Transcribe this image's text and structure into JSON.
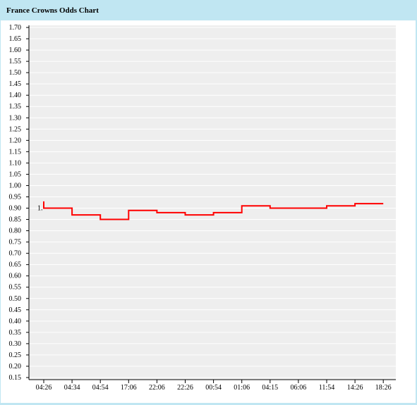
{
  "window": {
    "title": "France Crowns Odds Chart"
  },
  "chart_data": {
    "type": "line",
    "title": "France Crowns Odds Chart",
    "xlabel": "",
    "ylabel": "",
    "ylim": [
      0.15,
      1.7
    ],
    "y_ticks": [
      "1.70",
      "1.65",
      "1.60",
      "1.55",
      "1.50",
      "1.45",
      "1.40",
      "1.35",
      "1.30",
      "1.25",
      "1.20",
      "1.15",
      "1.10",
      "1.05",
      "1.00",
      "0.95",
      "0.90",
      "0.85",
      "0.80",
      "0.75",
      "0.70",
      "0.65",
      "0.60",
      "0.55",
      "0.50",
      "0.45",
      "0.40",
      "0.35",
      "0.30",
      "0.25",
      "0.20",
      "0.15"
    ],
    "x_ticks": [
      "04:26",
      "04:34",
      "04:54",
      "17:06",
      "22:06",
      "22:26",
      "00:54",
      "01:06",
      "04:15",
      "06:06",
      "11:54",
      "14:26",
      "18:26"
    ],
    "grid": true,
    "line_color": "#ff0000",
    "annotations": [
      {
        "text": "1.",
        "x_index": 0,
        "y": 0.9
      }
    ],
    "series": [
      {
        "step": true,
        "points": [
          {
            "x_index": 0,
            "y": 0.93
          },
          {
            "x_index": 0,
            "y": 0.9
          },
          {
            "x_index": 1,
            "y": 0.9
          },
          {
            "x_index": 1,
            "y": 0.87
          },
          {
            "x_index": 2,
            "y": 0.87
          },
          {
            "x_index": 2,
            "y": 0.85
          },
          {
            "x_index": 3,
            "y": 0.85
          },
          {
            "x_index": 3,
            "y": 0.89
          },
          {
            "x_index": 4,
            "y": 0.89
          },
          {
            "x_index": 4,
            "y": 0.88
          },
          {
            "x_index": 5,
            "y": 0.88
          },
          {
            "x_index": 5,
            "y": 0.87
          },
          {
            "x_index": 6,
            "y": 0.87
          },
          {
            "x_index": 6,
            "y": 0.88
          },
          {
            "x_index": 7,
            "y": 0.88
          },
          {
            "x_index": 7,
            "y": 0.91
          },
          {
            "x_index": 8,
            "y": 0.91
          },
          {
            "x_index": 8,
            "y": 0.9
          },
          {
            "x_index": 10,
            "y": 0.9
          },
          {
            "x_index": 10,
            "y": 0.91
          },
          {
            "x_index": 11,
            "y": 0.91
          },
          {
            "x_index": 11,
            "y": 0.92
          },
          {
            "x_index": 12,
            "y": 0.92
          }
        ]
      }
    ]
  }
}
